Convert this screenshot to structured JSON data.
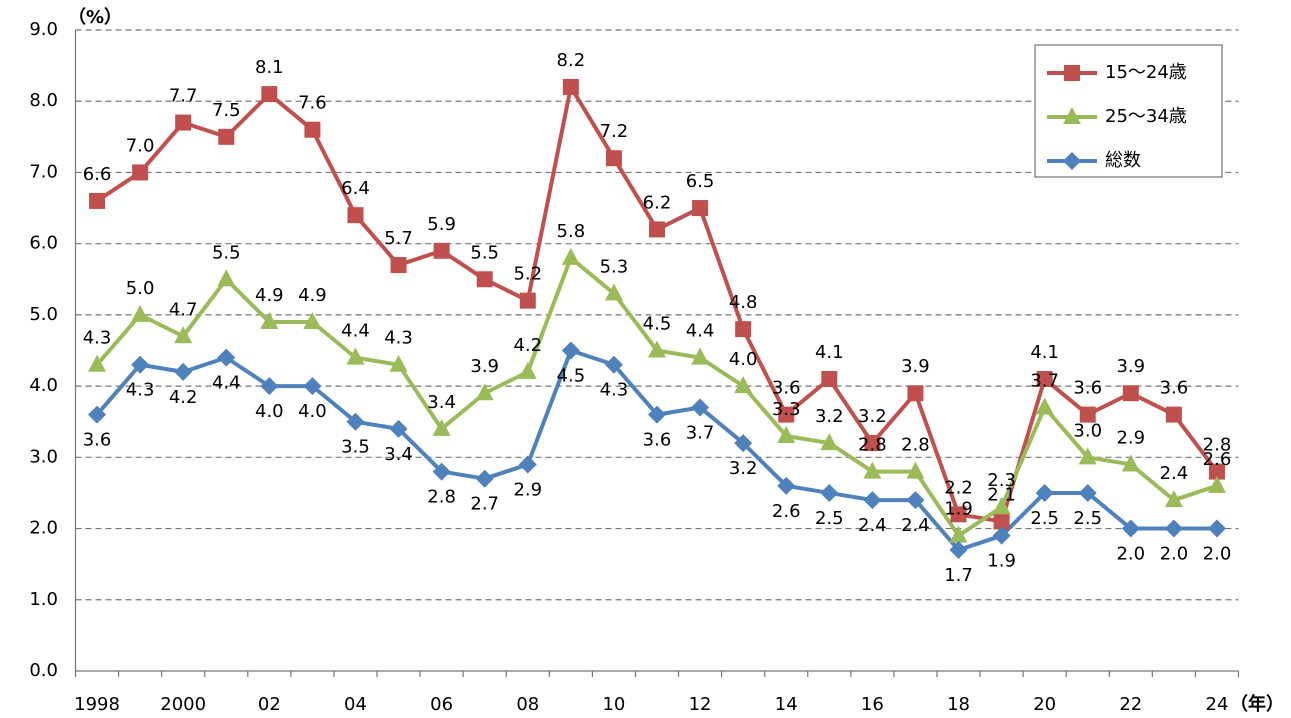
{
  "chart_data": {
    "type": "line",
    "y_label": "（%）",
    "x_label": "（年）",
    "categories": [
      "1998",
      null,
      "2000",
      null,
      "02",
      null,
      "04",
      null,
      "06",
      null,
      "08",
      null,
      "10",
      null,
      "12",
      null,
      "14",
      null,
      "16",
      null,
      "18",
      null,
      "20",
      null,
      "22",
      null,
      "24"
    ],
    "ylim": [
      0,
      9
    ],
    "yticks": [
      {
        "value": 0,
        "label": "0.0"
      },
      {
        "value": 1,
        "label": "1.0"
      },
      {
        "value": 2,
        "label": "2.0"
      },
      {
        "value": 3,
        "label": "3.0"
      },
      {
        "value": 4,
        "label": "4.0"
      },
      {
        "value": 5,
        "label": "5.0"
      },
      {
        "value": 6,
        "label": "6.0"
      },
      {
        "value": 7,
        "label": "7.0"
      },
      {
        "value": 8,
        "label": "8.0"
      },
      {
        "value": 9,
        "label": "9.0"
      }
    ],
    "grid": true,
    "legend": "upper right",
    "series": [
      {
        "name": "15～24歳",
        "color": "#c0504d",
        "marker": "square",
        "label_position": "above",
        "values": [
          6.6,
          7.0,
          7.7,
          7.5,
          8.1,
          7.6,
          6.4,
          5.7,
          5.9,
          5.5,
          5.2,
          8.2,
          7.2,
          6.2,
          6.5,
          4.8,
          3.6,
          4.1,
          3.2,
          3.9,
          2.2,
          2.1,
          4.1,
          3.6,
          3.9,
          3.6,
          2.8
        ],
        "value_labels": [
          "6.6",
          "7.0",
          "7.7",
          "7.5",
          "8.1",
          "7.6",
          "6.4",
          "5.7",
          "5.9",
          "5.5",
          "5.2",
          "8.2",
          "7.2",
          "6.2",
          "6.5",
          "4.8",
          "3.6",
          "4.1",
          "3.2",
          "3.9",
          "2.2",
          "2.1",
          "4.1",
          "3.6",
          "3.9",
          "3.6",
          "2.8"
        ]
      },
      {
        "name": "25～34歳",
        "color": "#9bbb59",
        "marker": "triangle",
        "label_position": "above",
        "values": [
          4.3,
          5.0,
          4.7,
          5.5,
          4.9,
          4.9,
          4.4,
          4.3,
          3.4,
          3.9,
          4.2,
          5.8,
          5.3,
          4.5,
          4.4,
          4.0,
          3.3,
          3.2,
          2.8,
          2.8,
          1.9,
          2.3,
          3.7,
          3.0,
          2.9,
          2.4,
          2.6
        ],
        "value_labels": [
          "4.3",
          "5.0",
          "4.7",
          "5.5",
          "4.9",
          "4.9",
          "4.4",
          "4.3",
          "3.4",
          "3.9",
          "4.2",
          "5.8",
          "5.3",
          "4.5",
          "4.4",
          "4.0",
          "3.3",
          "3.2",
          "2.8",
          "2.8",
          "1.9",
          "2.3",
          "3.7",
          "3.0",
          "2.9",
          "2.4",
          "2.6"
        ]
      },
      {
        "name": "総数",
        "color": "#4f81bd",
        "marker": "diamond",
        "label_position": "below",
        "values": [
          3.6,
          4.3,
          4.2,
          4.4,
          4.0,
          4.0,
          3.5,
          3.4,
          2.8,
          2.7,
          2.9,
          4.5,
          4.3,
          3.6,
          3.7,
          3.2,
          2.6,
          2.5,
          2.4,
          2.4,
          1.7,
          1.9,
          2.5,
          2.5,
          2.0,
          2.0,
          2.0
        ],
        "value_labels": [
          "3.6",
          "4.3",
          "4.2",
          "4.4",
          "4.0",
          "4.0",
          "3.5",
          "3.4",
          "2.8",
          "2.7",
          "2.9",
          "4.5",
          "4.3",
          "3.6",
          "3.7",
          "3.2",
          "2.6",
          "2.5",
          "2.4",
          "2.4",
          "1.7",
          "1.9",
          "2.5",
          "2.5",
          "2.0",
          "2.0",
          "2.0"
        ]
      }
    ]
  }
}
